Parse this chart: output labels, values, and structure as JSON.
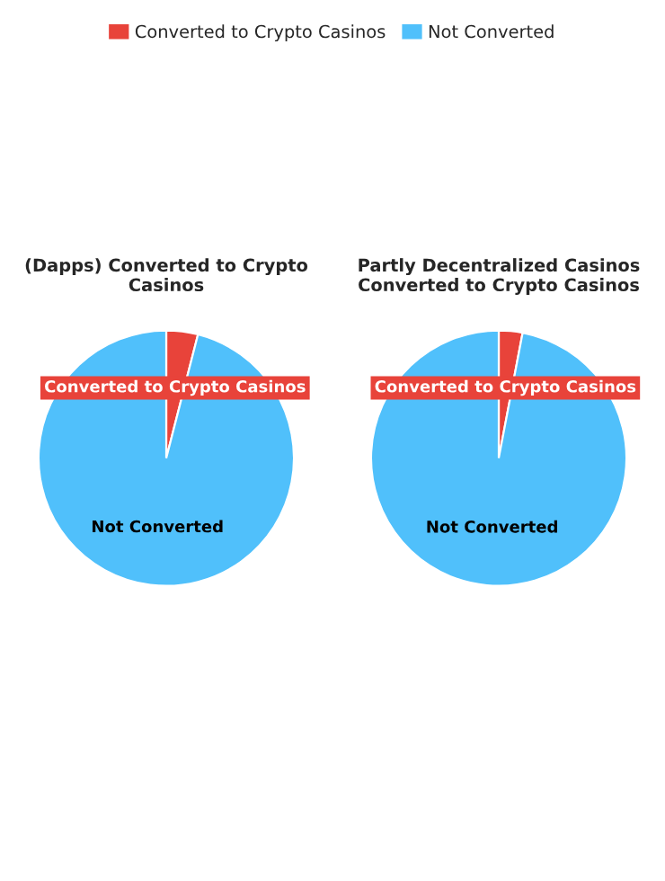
{
  "chart_data": [
    {
      "type": "pie",
      "title": "(Dapps) Converted to Crypto Casinos",
      "categories": [
        "Converted to Crypto Casinos",
        "Not Converted"
      ],
      "values": [
        4,
        96
      ],
      "colors": [
        "#e8433a",
        "#50c0fb"
      ],
      "legend": "top"
    },
    {
      "type": "pie",
      "title": "Partly Decentralized Casinos Converted to Crypto Casinos",
      "categories": [
        "Converted to Crypto Casinos",
        "Not Converted"
      ],
      "values": [
        3,
        97
      ],
      "colors": [
        "#e8433a",
        "#50c0fb"
      ]
    }
  ]
}
